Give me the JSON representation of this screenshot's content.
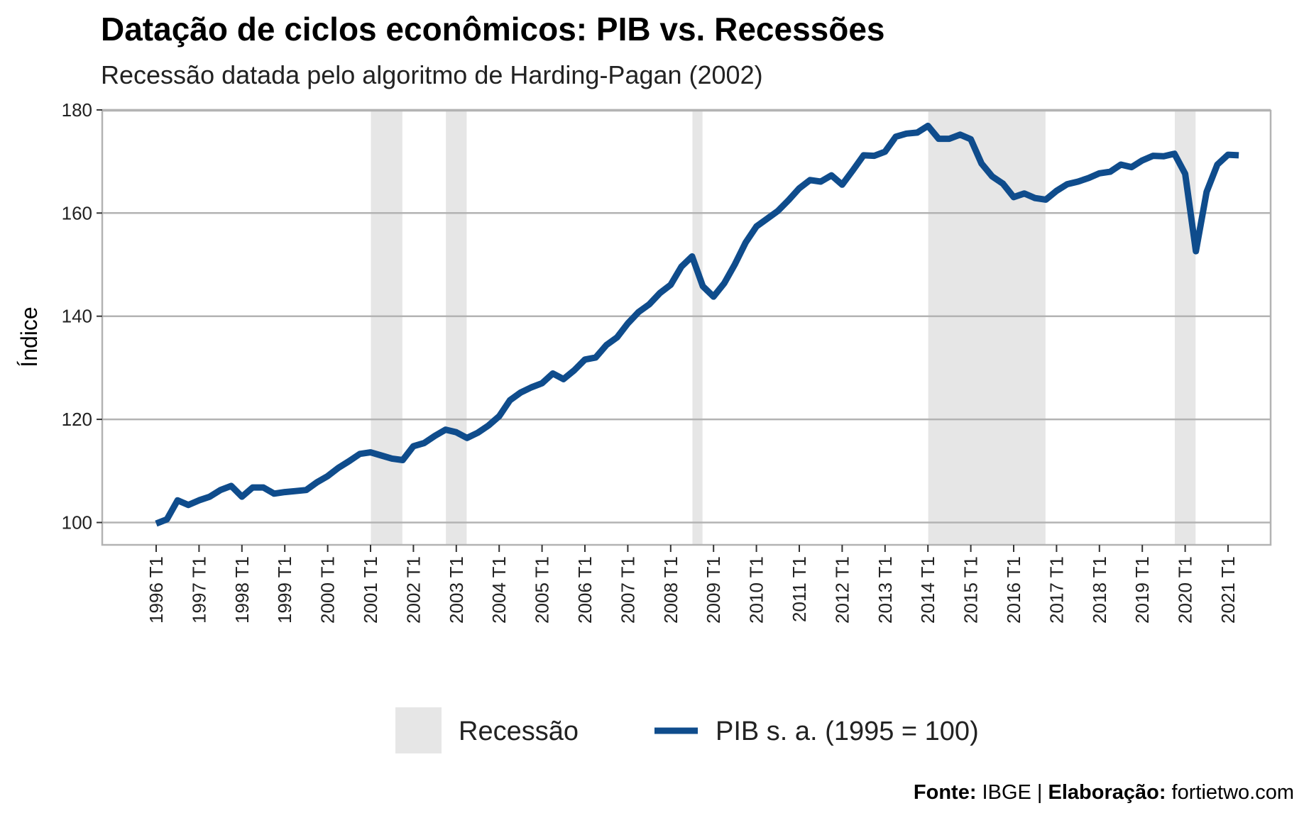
{
  "header": {
    "title": "Datação de ciclos econômicos: PIB vs. Recessões",
    "subtitle": "Recessão datada pelo algoritmo de Harding-Pagan (2002)"
  },
  "caption": {
    "source_label": "Fonte:",
    "source_value": " IBGE | ",
    "author_label": "Elaboração:",
    "author_value": " fortietwo.com"
  },
  "colors": {
    "line": "#0f4c8c",
    "recession": "#e6e6e6",
    "grid": "#b3b3b3",
    "panel_border": "#b3b3b3"
  },
  "chart_data": {
    "type": "line",
    "title": "Datação de ciclos econômicos: PIB vs. Recessões",
    "subtitle": "Recessão datada pelo algoritmo de Harding-Pagan (2002)",
    "xlabel": "",
    "ylabel": "Índice",
    "ylim": [
      97,
      180
    ],
    "yticks": [
      100,
      120,
      140,
      160,
      180
    ],
    "xlim": [
      "1995 T4",
      "2021 T4"
    ],
    "xticks": [
      "1996 T1",
      "1997 T1",
      "1998 T1",
      "1999 T1",
      "2000 T1",
      "2001 T1",
      "2002 T1",
      "2003 T1",
      "2004 T1",
      "2005 T1",
      "2006 T1",
      "2007 T1",
      "2008 T1",
      "2009 T1",
      "2010 T1",
      "2011 T1",
      "2012 T1",
      "2013 T1",
      "2014 T1",
      "2015 T1",
      "2016 T1",
      "2017 T1",
      "2018 T1",
      "2019 T1",
      "2020 T1",
      "2021 T1"
    ],
    "grid": "horizontal",
    "legend_position": "bottom",
    "recessions": [
      {
        "start": "2001 T1",
        "end": "2001 T4"
      },
      {
        "start": "2002 T4",
        "end": "2003 T2"
      },
      {
        "start": "2008 T3",
        "end": "2008 T4"
      },
      {
        "start": "2014 T1",
        "end": "2016 T4"
      },
      {
        "start": "2019 T4",
        "end": "2020 T2"
      }
    ],
    "legend": [
      {
        "key": "recession",
        "label": "Recessão"
      },
      {
        "key": "series",
        "label": "PIB s. a. (1995 = 100)"
      }
    ],
    "series": [
      {
        "name": "PIB s. a. (1995 = 100)",
        "x": [
          "1996 T1",
          "1996 T2",
          "1996 T3",
          "1996 T4",
          "1997 T1",
          "1997 T2",
          "1997 T3",
          "1997 T4",
          "1998 T1",
          "1998 T2",
          "1998 T3",
          "1998 T4",
          "1999 T1",
          "1999 T2",
          "1999 T3",
          "1999 T4",
          "2000 T1",
          "2000 T2",
          "2000 T3",
          "2000 T4",
          "2001 T1",
          "2001 T2",
          "2001 T3",
          "2001 T4",
          "2002 T1",
          "2002 T2",
          "2002 T3",
          "2002 T4",
          "2003 T1",
          "2003 T2",
          "2003 T3",
          "2003 T4",
          "2004 T1",
          "2004 T2",
          "2004 T3",
          "2004 T4",
          "2005 T1",
          "2005 T2",
          "2005 T3",
          "2005 T4",
          "2006 T1",
          "2006 T2",
          "2006 T3",
          "2006 T4",
          "2007 T1",
          "2007 T2",
          "2007 T3",
          "2007 T4",
          "2008 T1",
          "2008 T2",
          "2008 T3",
          "2008 T4",
          "2009 T1",
          "2009 T2",
          "2009 T3",
          "2009 T4",
          "2010 T1",
          "2010 T2",
          "2010 T3",
          "2010 T4",
          "2011 T1",
          "2011 T2",
          "2011 T3",
          "2011 T4",
          "2012 T1",
          "2012 T2",
          "2012 T3",
          "2012 T4",
          "2013 T1",
          "2013 T2",
          "2013 T3",
          "2013 T4",
          "2014 T1",
          "2014 T2",
          "2014 T3",
          "2014 T4",
          "2015 T1",
          "2015 T2",
          "2015 T3",
          "2015 T4",
          "2016 T1",
          "2016 T2",
          "2016 T3",
          "2016 T4",
          "2017 T1",
          "2017 T2",
          "2017 T3",
          "2017 T4",
          "2018 T1",
          "2018 T2",
          "2018 T3",
          "2018 T4",
          "2019 T1",
          "2019 T2",
          "2019 T3",
          "2019 T4",
          "2020 T1",
          "2020 T2",
          "2020 T3",
          "2020 T4",
          "2021 T1",
          "2021 T2"
        ],
        "values": [
          99.8,
          100.6,
          104.3,
          103.4,
          104.3,
          105.0,
          106.3,
          107.1,
          105.0,
          106.8,
          106.8,
          105.6,
          105.9,
          106.1,
          106.3,
          107.8,
          109.0,
          110.6,
          111.9,
          113.3,
          113.6,
          113.0,
          112.4,
          112.1,
          114.8,
          115.4,
          116.8,
          118.0,
          117.5,
          116.4,
          117.4,
          118.8,
          120.6,
          123.7,
          125.2,
          126.2,
          127.0,
          128.9,
          127.8,
          129.5,
          131.6,
          132.0,
          134.4,
          135.9,
          138.6,
          140.8,
          142.3,
          144.5,
          146.1,
          149.6,
          151.6,
          145.8,
          143.8,
          146.4,
          150.1,
          154.3,
          157.4,
          158.9,
          160.4,
          162.5,
          164.8,
          166.4,
          166.1,
          167.3,
          165.5,
          168.3,
          171.2,
          171.1,
          171.9,
          174.8,
          175.4,
          175.6,
          176.9,
          174.4,
          174.4,
          175.2,
          174.3,
          169.6,
          167.1,
          165.7,
          163.1,
          163.8,
          162.9,
          162.6,
          164.3,
          165.6,
          166.1,
          166.8,
          167.7,
          168.0,
          169.4,
          168.9,
          170.2,
          171.1,
          171.0,
          171.5,
          167.6,
          152.6,
          164.1,
          169.4,
          171.3,
          171.2
        ]
      }
    ]
  }
}
